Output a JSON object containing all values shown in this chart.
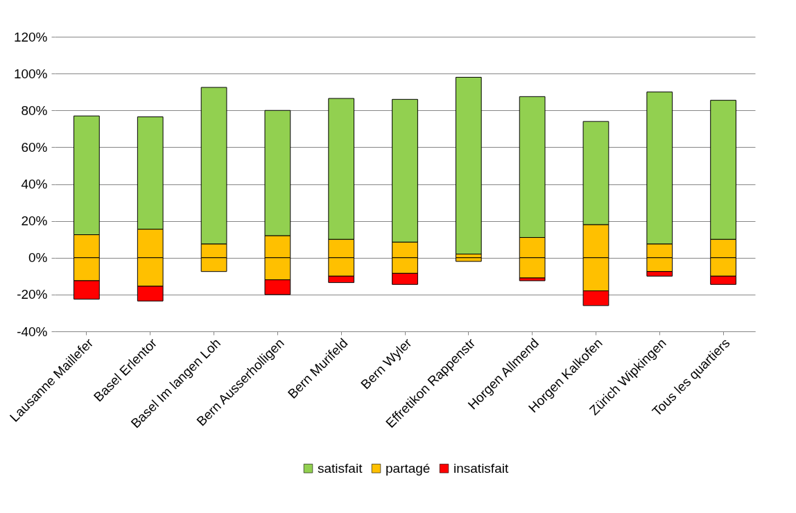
{
  "chart_data": {
    "type": "bar",
    "stacked": true,
    "categories": [
      "Lausanne Maillefer",
      "Basel Erlentor",
      "Basel Im langen Loh",
      "Bern Ausserholligen",
      "Bern Murifeld",
      "Bern Wyler",
      "Effretikon Rappenstr",
      "Horgen Allmend",
      "Horgen Kalkofen",
      "Zürich Wipkingen",
      "Tous les quartiers"
    ],
    "series": [
      {
        "color": "#ffc000",
        "values": [
          12.5,
          15.5,
          7.5,
          12,
          10,
          8.5,
          2,
          11,
          18,
          7.5,
          10
        ]
      },
      {
        "name": "satisfait",
        "color": "#92d050",
        "values": [
          64.5,
          61,
          85,
          68,
          76.5,
          77.5,
          96,
          76.5,
          56,
          82.5,
          75.5
        ]
      },
      {
        "name": "partagé",
        "color": "#ffc000",
        "values": [
          -12.5,
          -15.5,
          -7.5,
          -12,
          -10,
          -8.5,
          -2,
          -11,
          -18,
          -7.5,
          -10
        ]
      },
      {
        "name": "insatisfait",
        "color": "#ff0000",
        "values": [
          -10,
          -8,
          0,
          -8,
          -3.5,
          -6,
          0,
          -1.5,
          -8,
          -2.5,
          -4.5
        ]
      }
    ],
    "ylim": [
      -40,
      120
    ],
    "yticks": [
      {
        "value": -40,
        "label": "-40%"
      },
      {
        "value": -20,
        "label": "-20%"
      },
      {
        "value": 0,
        "label": "0%"
      },
      {
        "value": 20,
        "label": "20%"
      },
      {
        "value": 40,
        "label": "40%"
      },
      {
        "value": 60,
        "label": "60%"
      },
      {
        "value": 80,
        "label": "80%"
      },
      {
        "value": 100,
        "label": "100%"
      },
      {
        "value": 120,
        "label": "120%"
      }
    ],
    "grid": "y",
    "legend": "bottom"
  }
}
